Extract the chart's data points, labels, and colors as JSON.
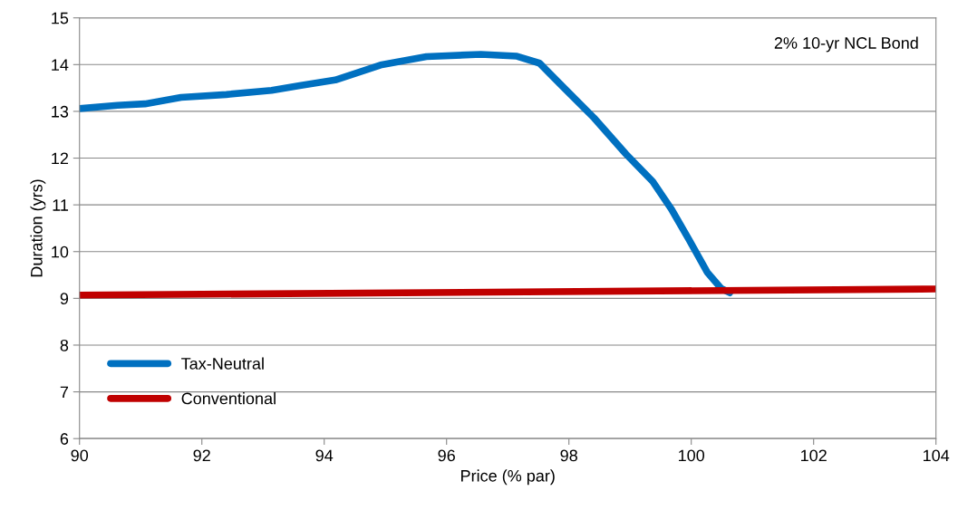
{
  "chart_data": {
    "type": "line",
    "xlabel": "Price (% par)",
    "ylabel": "Duration (yrs)",
    "annotations": [
      "2% 10-yr NCL Bond"
    ],
    "xlim": [
      90,
      104
    ],
    "xticks": [
      90,
      92,
      94,
      96,
      98,
      100,
      102,
      104
    ],
    "ylim": [
      6,
      15
    ],
    "yticks": [
      6,
      7,
      8,
      9,
      10,
      11,
      12,
      13,
      14,
      15
    ],
    "grid": "y",
    "legend": "bottom left",
    "line_style": "solid",
    "series": [
      {
        "name": "Tax-Neutral",
        "color": "#0070c0",
        "x": [
          90,
          90.62,
          91.07,
          91.66,
          92.4,
          93.14,
          93.6,
          94.18,
          94.92,
          95.67,
          96.56,
          97.15,
          97.52,
          97.89,
          98.41,
          98.93,
          99.37,
          99.67,
          99.97,
          100.26,
          100.49,
          100.63
        ],
        "values": [
          13.06,
          13.13,
          13.16,
          13.3,
          13.36,
          13.45,
          13.55,
          13.67,
          13.99,
          14.17,
          14.22,
          14.18,
          14.03,
          13.54,
          12.86,
          12.09,
          11.5,
          10.92,
          10.24,
          9.56,
          9.21,
          9.12
        ]
      },
      {
        "name": "Conventional",
        "color": "#c00000",
        "x": [
          90,
          104
        ],
        "values": [
          9.07,
          9.2
        ]
      }
    ]
  }
}
